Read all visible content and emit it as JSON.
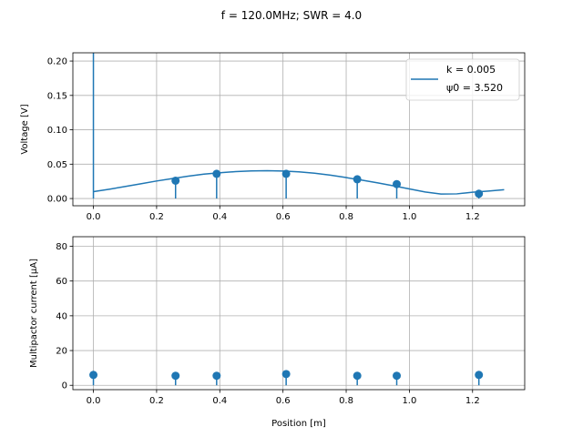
{
  "figure": {
    "title": "f = 120.0MHz; SWR = 4.0"
  },
  "chart_data": [
    {
      "type": "line",
      "ylabel": "Voltage [V]",
      "xlabel": "",
      "xlim": [
        -0.065,
        1.365
      ],
      "ylim": [
        -0.0105,
        0.212
      ],
      "xticks": [
        0.0,
        0.2,
        0.4,
        0.6,
        0.8,
        1.0,
        1.2
      ],
      "xtick_labels": [
        "0.0",
        "0.2",
        "0.4",
        "0.6",
        "0.8",
        "1.0",
        "1.2"
      ],
      "yticks": [
        0.0,
        0.05,
        0.1,
        0.15,
        0.2
      ],
      "ytick_labels": [
        "0.00",
        "0.05",
        "0.10",
        "0.15",
        "0.20"
      ],
      "grid": true,
      "legend_position": "top-right",
      "legend_lines": [
        "k = 0.005",
        "ψ0 = 3.520"
      ],
      "color": "#1f77b4",
      "curve": {
        "x": [
          0.0,
          0.05,
          0.1,
          0.15,
          0.2,
          0.25,
          0.3,
          0.35,
          0.4,
          0.45,
          0.5,
          0.55,
          0.6,
          0.65,
          0.7,
          0.75,
          0.8,
          0.85,
          0.9,
          0.95,
          1.0,
          1.05,
          1.1,
          1.15,
          1.18,
          1.2,
          1.22,
          1.25,
          1.3
        ],
        "y": [
          0.01,
          0.0135,
          0.0175,
          0.0215,
          0.0255,
          0.029,
          0.0325,
          0.0355,
          0.0375,
          0.0392,
          0.0402,
          0.0405,
          0.04,
          0.0388,
          0.0368,
          0.034,
          0.0305,
          0.0268,
          0.0228,
          0.0185,
          0.014,
          0.0095,
          0.0065,
          0.0068,
          0.0082,
          0.0092,
          0.0098,
          0.0108,
          0.0128
        ]
      },
      "spike": {
        "x": 0.0,
        "y": 0.212
      },
      "stems": {
        "x": [
          0.26,
          0.39,
          0.61,
          0.835,
          0.96,
          1.22
        ],
        "y": [
          0.026,
          0.036,
          0.036,
          0.028,
          0.021,
          0.007
        ]
      }
    },
    {
      "type": "scatter",
      "ylabel": "Multipactor current [μA]",
      "xlabel": "Position [m]",
      "xlim": [
        -0.065,
        1.365
      ],
      "ylim": [
        -2.5,
        85.5
      ],
      "xticks": [
        0.0,
        0.2,
        0.4,
        0.6,
        0.8,
        1.0,
        1.2
      ],
      "xtick_labels": [
        "0.0",
        "0.2",
        "0.4",
        "0.6",
        "0.8",
        "1.0",
        "1.2"
      ],
      "yticks": [
        0,
        20,
        40,
        60,
        80
      ],
      "ytick_labels": [
        "0",
        "20",
        "40",
        "60",
        "80"
      ],
      "grid": true,
      "color": "#1f77b4",
      "stems": {
        "x": [
          0.0,
          0.26,
          0.39,
          0.61,
          0.835,
          0.96,
          1.22
        ],
        "y": [
          6.0,
          5.5,
          5.5,
          6.5,
          5.5,
          5.5,
          6.0
        ]
      }
    }
  ]
}
